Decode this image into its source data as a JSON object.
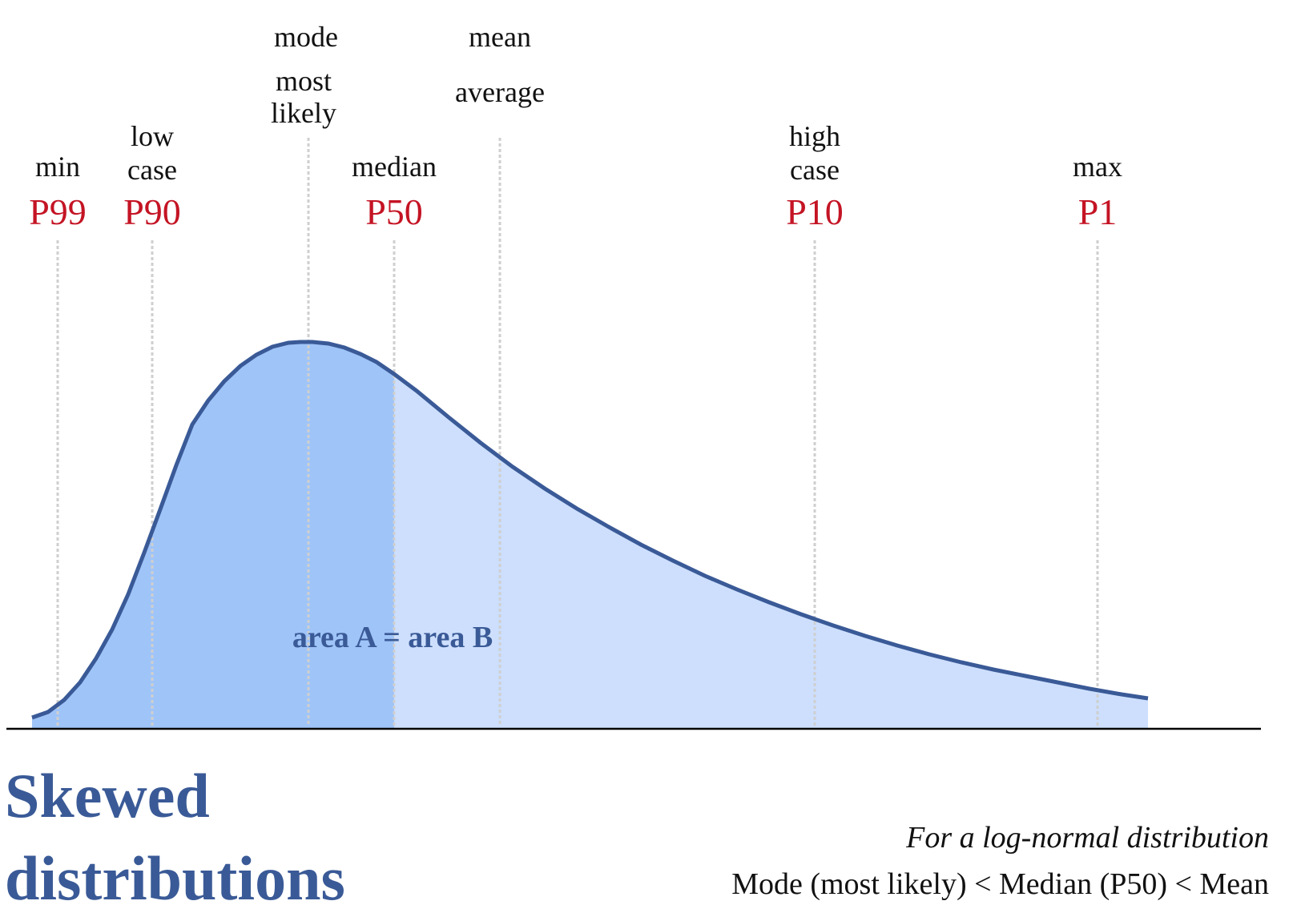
{
  "colors": {
    "curve": "#3a5a97",
    "fill_light": "#cddffd",
    "fill_dark": "#9fc4f8",
    "percentile": "#c41424",
    "guide": "#cfcfcf",
    "title": "#3a5a97",
    "axis": "#000000"
  },
  "markers": [
    {
      "id": "min",
      "desc": [
        "min"
      ],
      "percentile": "P99"
    },
    {
      "id": "low-case",
      "desc": [
        "low",
        "case"
      ],
      "percentile": "P90"
    },
    {
      "id": "mode",
      "desc": [
        "mode",
        "most",
        "likely"
      ],
      "percentile": ""
    },
    {
      "id": "median",
      "desc": [
        "median"
      ],
      "percentile": "P50"
    },
    {
      "id": "mean",
      "desc": [
        "mean",
        "average"
      ],
      "percentile": ""
    },
    {
      "id": "high-case",
      "desc": [
        "high",
        "case"
      ],
      "percentile": "P10"
    },
    {
      "id": "max",
      "desc": [
        "max"
      ],
      "percentile": "P1"
    }
  ],
  "area_label": "area A = area B",
  "title": {
    "line1": "Skewed",
    "line2": "distributions"
  },
  "note": {
    "line1": "For a log-normal distribution",
    "line2": "Mode (most likely) < Median (P50) < Mean"
  }
}
